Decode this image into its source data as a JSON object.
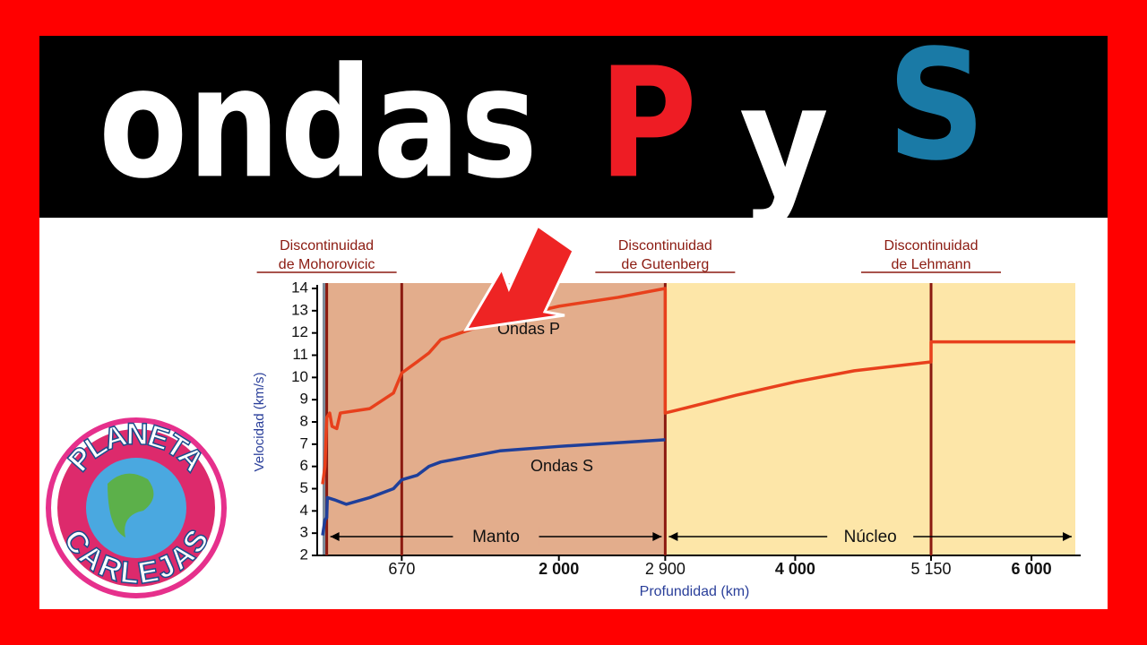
{
  "thumbnail": {
    "title_words": [
      "ondas",
      "P",
      "y",
      "S"
    ],
    "logo": [
      "PLANETA",
      "CARLEJAS"
    ]
  },
  "chart_data": {
    "type": "line",
    "x_label": "Profundidad (km)",
    "y_label": "Velocidad (km/s)",
    "xlim": [
      0,
      6371
    ],
    "ylim": [
      2,
      14
    ],
    "xticks": [
      670,
      {
        "value": 2000,
        "label": "2 000"
      },
      {
        "value": 2900,
        "label": "2 900"
      },
      {
        "value": 4000,
        "label": "4 000"
      },
      {
        "value": 5150,
        "label": "5 150"
      },
      {
        "value": 6000,
        "label": "6 000"
      }
    ],
    "yticks": [
      2,
      3,
      4,
      5,
      6,
      7,
      8,
      9,
      10,
      11,
      12,
      13,
      14
    ],
    "regions": [
      {
        "name": "Manto",
        "x": [
          35,
          2900
        ],
        "color": "#e3ad8c"
      },
      {
        "name": "Núcleo",
        "x": [
          2900,
          6371
        ],
        "color": "#fde6a8"
      }
    ],
    "discontinuities": [
      {
        "lines": [
          "Discontinuidad",
          "de Mohorovicic"
        ],
        "x": 35
      },
      {
        "x": 670
      },
      {
        "lines": [
          "Discontinuidad",
          "de Gutenberg"
        ],
        "x": 2900
      },
      {
        "lines": [
          "Discontinuidad",
          "de Lehmann"
        ],
        "x": 5150
      }
    ],
    "series": [
      {
        "name": "Ondas P",
        "color": "#e8401c",
        "x": [
          0,
          20,
          35,
          60,
          80,
          120,
          150,
          400,
          600,
          670,
          800,
          900,
          1000,
          1500,
          2000,
          2500,
          2900,
          2900,
          3500,
          4000,
          4500,
          5150,
          5150,
          6371
        ],
        "values": [
          5.2,
          6.0,
          8.2,
          8.4,
          7.8,
          7.7,
          8.4,
          8.6,
          9.3,
          10.2,
          10.7,
          11.1,
          11.7,
          12.6,
          13.2,
          13.6,
          14.0,
          8.4,
          9.2,
          9.8,
          10.3,
          10.7,
          11.6,
          11.6
        ]
      },
      {
        "name": "Ondas S",
        "color": "#1f3f9a",
        "x": [
          0,
          20,
          35,
          40,
          100,
          200,
          400,
          600,
          670,
          800,
          900,
          1000,
          1500,
          2000,
          2900
        ],
        "values": [
          2.9,
          3.6,
          3.7,
          4.6,
          4.5,
          4.3,
          4.6,
          5.0,
          5.4,
          5.6,
          6.0,
          6.2,
          6.7,
          6.9,
          7.2
        ]
      }
    ]
  }
}
